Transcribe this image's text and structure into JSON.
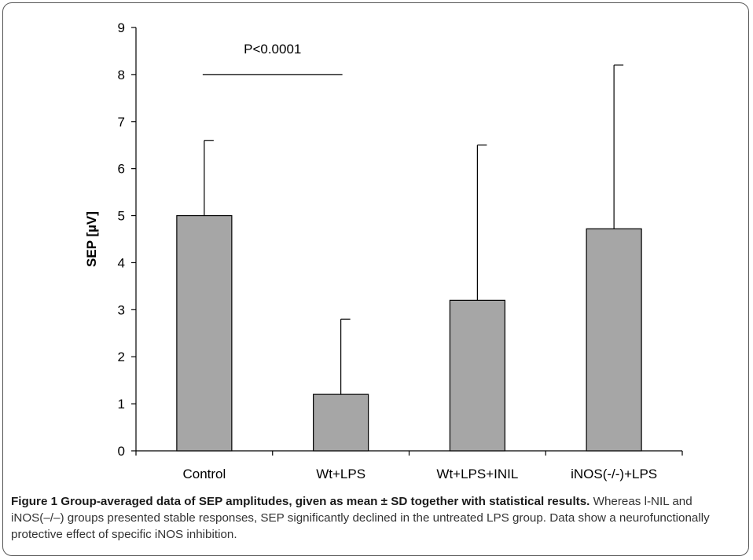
{
  "chart_data": {
    "type": "bar",
    "categories": [
      "Control",
      "Wt+LPS",
      "Wt+LPS+INIL",
      "iNOS(-/-)+LPS"
    ],
    "values": [
      5.0,
      1.2,
      3.2,
      4.72
    ],
    "error_upper": [
      6.6,
      2.8,
      6.5,
      8.2
    ],
    "title": "",
    "xlabel": "",
    "ylabel": "SEP [µV]",
    "ylim": [
      0,
      9
    ],
    "yticks": [
      0,
      1,
      2,
      3,
      4,
      5,
      6,
      7,
      8,
      9
    ],
    "grid": false,
    "bar_color": "#a6a6a6",
    "annotation": {
      "text": "P<0.0001",
      "y": 8.0,
      "from": "Control",
      "to": "Wt+LPS"
    }
  },
  "caption": {
    "bold": "Figure 1 Group-averaged data of SEP amplitudes, given as mean ± SD together with statistical results.",
    "text": " Whereas l-NIL and iNOS(–/–) groups presented stable responses, SEP significantly declined in the untreated LPS group. Data show a neurofunctionally protective effect of specific iNOS inhibition."
  }
}
